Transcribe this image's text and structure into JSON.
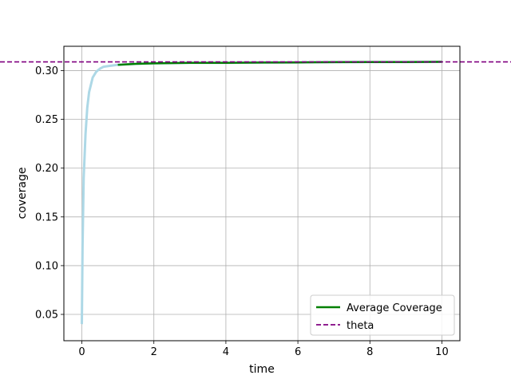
{
  "chart_data": {
    "type": "line",
    "xlabel": "time",
    "ylabel": "coverage",
    "xlim": [
      -0.5,
      10.5
    ],
    "ylim": [
      0.023,
      0.325
    ],
    "xticks": [
      0,
      2,
      4,
      6,
      8,
      10
    ],
    "xtick_labels": [
      "0",
      "2",
      "4",
      "6",
      "8",
      "10"
    ],
    "yticks": [
      0.05,
      0.1,
      0.15,
      0.2,
      0.25,
      0.3
    ],
    "ytick_labels": [
      "0.05",
      "0.10",
      "0.15",
      "0.20",
      "0.25",
      "0.30"
    ],
    "grid": true,
    "legend_position": "lower-right",
    "series": [
      {
        "name": "",
        "role": "individual-trajectories",
        "color": "#add8e6",
        "x": [
          0,
          0.02,
          0.05,
          0.1,
          0.15,
          0.2,
          0.3,
          0.4,
          0.5,
          0.6,
          0.8,
          1.0,
          1.5,
          2,
          3,
          4,
          5,
          6,
          7,
          8,
          9,
          10
        ],
        "y": [
          0.04,
          0.12,
          0.19,
          0.235,
          0.262,
          0.278,
          0.293,
          0.299,
          0.302,
          0.304,
          0.305,
          0.306,
          0.307,
          0.3075,
          0.308,
          0.308,
          0.3083,
          0.3085,
          0.3087,
          0.3088,
          0.3089,
          0.309
        ]
      },
      {
        "name": "Average Coverage",
        "color": "#008000",
        "x": [
          1.0,
          1.5,
          2,
          3,
          4,
          5,
          6,
          7,
          8,
          9,
          10
        ],
        "y": [
          0.306,
          0.307,
          0.3075,
          0.308,
          0.308,
          0.3083,
          0.3085,
          0.3087,
          0.3088,
          0.3089,
          0.309
        ]
      },
      {
        "name": "theta",
        "color": "#800080",
        "style": "dashed",
        "type": "horizontal-line",
        "y": 0.309
      }
    ]
  }
}
